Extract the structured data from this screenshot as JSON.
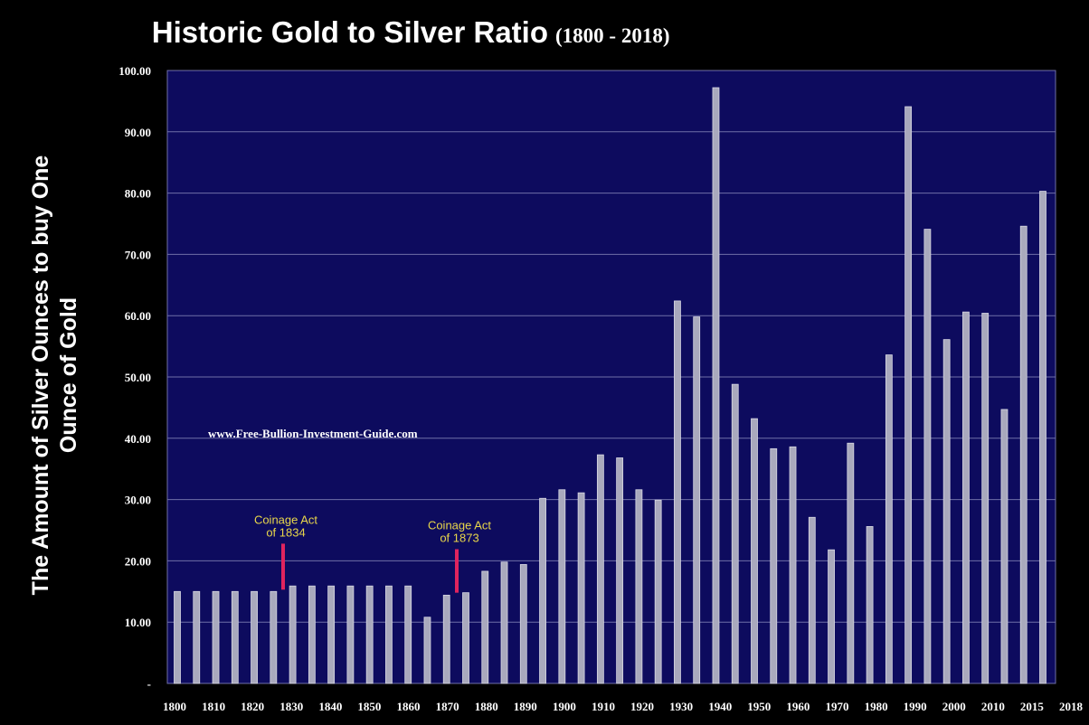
{
  "colors": {
    "background": "#000000",
    "plot_background": "#0d0b5e",
    "gridline": "#6f6fa8",
    "bar_fill": "#a9a9bd",
    "bar_stroke": "#d8d8e4",
    "text": "#ffffff",
    "annotation_text": "#e8d64a",
    "marker": "#e0245e"
  },
  "chart_data": {
    "type": "bar",
    "title": "Historic Gold to Silver Ratio",
    "subtitle": "(1800 - 2018)",
    "xlabel": "",
    "ylabel": "The Amount of Silver Ounces to buy One Ounce of Gold",
    "ylabel_lines": [
      "The Amount of Silver Ounces to buy One",
      "Ounce of Gold"
    ],
    "ylim": [
      0,
      100
    ],
    "grid": true,
    "legend": "none",
    "y_tick_labels": [
      "-",
      "10.00",
      "20.00",
      "30.00",
      "40.00",
      "50.00",
      "60.00",
      "70.00",
      "80.00",
      "90.00",
      "100.00"
    ],
    "x_tick_labels": [
      "1800",
      "1810",
      "1820",
      "1830",
      "1840",
      "1850",
      "1860",
      "1870",
      "1880",
      "1890",
      "1900",
      "1910",
      "1920",
      "1930",
      "1940",
      "1950",
      "1960",
      "1970",
      "1980",
      "1990",
      "2000",
      "2010",
      "2015",
      "2018"
    ],
    "values": [
      15.0,
      15.0,
      15.0,
      15.0,
      15.0,
      15.0,
      15.9,
      15.9,
      15.9,
      15.9,
      15.9,
      15.9,
      15.9,
      10.8,
      14.4,
      14.8,
      18.3,
      19.8,
      19.4,
      30.2,
      31.6,
      31.1,
      37.3,
      36.8,
      31.6,
      29.9,
      62.4,
      59.8,
      97.2,
      48.8,
      43.2,
      38.3,
      38.6,
      27.1,
      21.8,
      39.2,
      25.6,
      53.6,
      94.1,
      74.1,
      56.1,
      60.6,
      60.4,
      44.7,
      74.6,
      80.3
    ],
    "annotations": [
      {
        "text": "Coinage Act",
        "text2": "of 1834",
        "value_from": 15.3,
        "value_to": 22.8
      },
      {
        "text": "Coinage Act",
        "text2": "of 1873",
        "value_from": 14.8,
        "value_to": 21.9
      }
    ],
    "watermark": "www.Free-Bullion-Investment-Guide.com"
  }
}
